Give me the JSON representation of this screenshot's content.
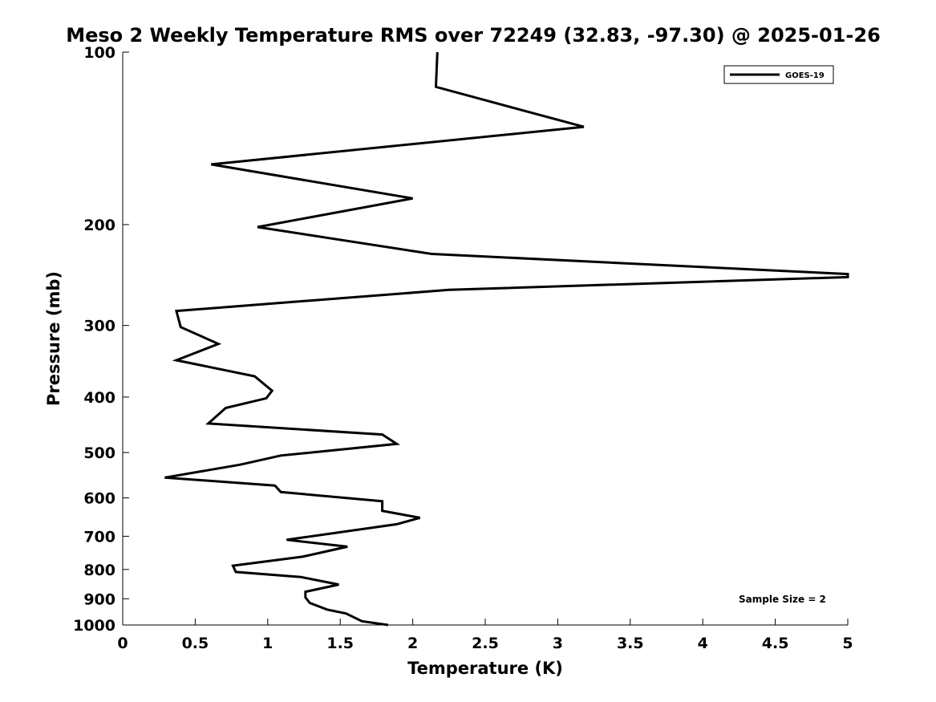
{
  "chart_data": {
    "type": "line",
    "title": "Meso 2 Weekly Temperature RMS over 72249 (32.83, -97.30) @ 2025-01-26",
    "xlabel": "Temperature (K)",
    "ylabel": "Pressure (mb)",
    "xlim": [
      0,
      5
    ],
    "ylim": [
      100,
      1000
    ],
    "y_scale": "log",
    "y_reversed": true,
    "x_ticks": [
      "0",
      "0.5",
      "1",
      "1.5",
      "2",
      "2.5",
      "3",
      "3.5",
      "4",
      "4.5",
      "5"
    ],
    "y_ticks": [
      "100",
      "200",
      "300",
      "400",
      "500",
      "600",
      "700",
      "800",
      "900",
      "1000"
    ],
    "grid": false,
    "legend_position": "top-right",
    "annotation": "Sample Size = 2",
    "series": [
      {
        "name": "GOES-19",
        "color": "#000000",
        "points": [
          [
            2.17,
            100
          ],
          [
            2.16,
            115
          ],
          [
            3.18,
            135
          ],
          [
            0.61,
            157
          ],
          [
            2.0,
            180
          ],
          [
            0.93,
            202
          ],
          [
            2.13,
            225
          ],
          [
            5.0,
            244
          ],
          [
            5.0,
            247
          ],
          [
            2.25,
            260
          ],
          [
            0.37,
            283
          ],
          [
            0.4,
            302
          ],
          [
            0.66,
            323
          ],
          [
            0.37,
            345
          ],
          [
            0.91,
            368
          ],
          [
            1.03,
            390
          ],
          [
            0.99,
            402
          ],
          [
            0.71,
            418
          ],
          [
            0.59,
            445
          ],
          [
            1.79,
            465
          ],
          [
            1.89,
            483
          ],
          [
            1.09,
            506
          ],
          [
            0.81,
            525
          ],
          [
            0.29,
            553
          ],
          [
            1.05,
            571
          ],
          [
            1.09,
            586
          ],
          [
            1.79,
            608
          ],
          [
            1.79,
            632
          ],
          [
            2.05,
            650
          ],
          [
            1.89,
            667
          ],
          [
            1.13,
            710
          ],
          [
            1.55,
            730
          ],
          [
            1.24,
            760
          ],
          [
            0.76,
            788
          ],
          [
            0.78,
            808
          ],
          [
            1.23,
            825
          ],
          [
            1.49,
            850
          ],
          [
            1.26,
            875
          ],
          [
            1.26,
            895
          ],
          [
            1.29,
            915
          ],
          [
            1.41,
            940
          ],
          [
            1.54,
            955
          ],
          [
            1.65,
            985
          ],
          [
            1.83,
            1000
          ]
        ]
      }
    ]
  }
}
